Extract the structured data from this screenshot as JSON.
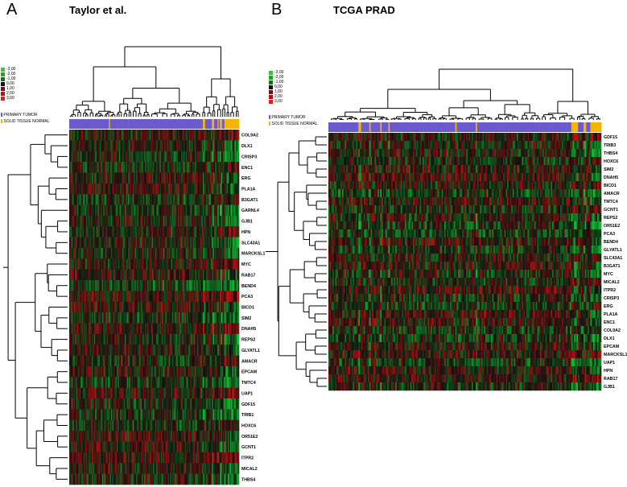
{
  "panel_a": {
    "letter": "A",
    "title": "Taylor et al.",
    "annotation_labels": [
      "PRIMARY TUMOR",
      "SOLID TISSUE NORMAL"
    ],
    "genes": [
      "COL9A2",
      "DLX1",
      "CRISP3",
      "ENC1",
      "ERG",
      "PLA1A",
      "B3GAT1",
      "GARNL4",
      "GJB1",
      "HPN",
      "SLC43A1",
      "MARCKSL1",
      "MYC",
      "RAB17",
      "BEND4",
      "PCA3",
      "BICD1",
      "SIM2",
      "DNAH5",
      "REPS2",
      "GLYATL1",
      "AMACR",
      "EPCAM",
      "TMTC4",
      "UAP1",
      "GDF15",
      "TRIB1",
      "HOXC6",
      "OR51E2",
      "GCNT1",
      "ITPR2",
      "MICAL2",
      "THBS4"
    ]
  },
  "panel_b": {
    "letter": "B",
    "title": "TCGA PRAD",
    "annotation_labels": [
      "PRIMARY TUMOR",
      "SOLID TISSUE NORMAL"
    ],
    "genes": [
      "GDF15",
      "TRIB3",
      "THBS4",
      "HOXC6",
      "SIM2",
      "DNAH5",
      "BICD1",
      "AMACR",
      "TMTC4",
      "GCNT1",
      "REPS2",
      "OR51E2",
      "PCA3",
      "BEND4",
      "GLYATL1",
      "SLC43A1",
      "B3GAT1",
      "MYC",
      "MICAL2",
      "ITPR2",
      "CRISP3",
      "ERG",
      "PLA1A",
      "ENC1",
      "COL9A2",
      "DLX1",
      "EPCAM",
      "MARCKSL1",
      "UAP1",
      "HPN",
      "RAB17",
      "GJB1"
    ]
  },
  "color_scale": {
    "labels": [
      "-3,00",
      "-2,00",
      "-1,00",
      "0,00",
      "1,00",
      "2,00",
      "3,00"
    ],
    "colors": [
      "#3fbf3f",
      "#2f9a2f",
      "#1f6a1f",
      "#101010",
      "#6a1414",
      "#a01818",
      "#e02020"
    ]
  },
  "annotation_colors": {
    "tumor": "#6a5acd",
    "normal": "#f4b400"
  }
}
